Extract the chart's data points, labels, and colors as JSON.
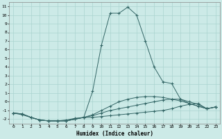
{
  "background_color": "#cceae7",
  "grid_color": "#aad4d0",
  "line_color": "#336666",
  "xlabel": "Humidex (Indice chaleur)",
  "xlim": [
    -0.5,
    23.5
  ],
  "ylim": [
    -2.5,
    11.5
  ],
  "xticks": [
    0,
    1,
    2,
    3,
    4,
    5,
    6,
    7,
    8,
    9,
    10,
    11,
    12,
    13,
    14,
    15,
    16,
    17,
    18,
    19,
    20,
    21,
    22,
    23
  ],
  "yticks": [
    -2,
    -1,
    0,
    1,
    2,
    3,
    4,
    5,
    6,
    7,
    8,
    9,
    10,
    11
  ],
  "series": [
    {
      "x": [
        0,
        1,
        2,
        3,
        4,
        5,
        6,
        7,
        8,
        9,
        10,
        11,
        12,
        13,
        14,
        15,
        16,
        17,
        18,
        19,
        20,
        21,
        22,
        23
      ],
      "y": [
        -1.3,
        -1.4,
        -1.8,
        -2.1,
        -2.2,
        -2.2,
        -2.2,
        -2.0,
        -1.8,
        -1.8,
        -1.7,
        -1.6,
        -1.5,
        -1.4,
        -1.3,
        -1.2,
        -1.1,
        -1.0,
        -0.8,
        -0.5,
        -0.3,
        -0.2,
        -0.8,
        -0.6
      ]
    },
    {
      "x": [
        0,
        1,
        2,
        3,
        4,
        5,
        6,
        7,
        8,
        9,
        10,
        11,
        12,
        13,
        14,
        15,
        16,
        17,
        18,
        19,
        20,
        21,
        22,
        23
      ],
      "y": [
        -1.3,
        -1.4,
        -1.8,
        -2.1,
        -2.2,
        -2.2,
        -2.2,
        -2.0,
        -1.8,
        -1.6,
        -1.3,
        -1.0,
        -0.8,
        -0.6,
        -0.4,
        -0.2,
        0.0,
        0.2,
        0.3,
        0.3,
        0.0,
        -0.3,
        -0.8,
        -0.6
      ]
    },
    {
      "x": [
        0,
        1,
        2,
        3,
        4,
        5,
        6,
        7,
        8,
        9,
        10,
        11,
        12,
        13,
        14,
        15,
        16,
        17,
        18,
        19,
        20,
        21,
        22,
        23
      ],
      "y": [
        -1.3,
        -1.4,
        -1.8,
        -2.1,
        -2.2,
        -2.2,
        -2.2,
        -2.0,
        -1.8,
        -1.5,
        -1.0,
        -0.5,
        0.0,
        0.3,
        0.5,
        0.6,
        0.6,
        0.5,
        0.3,
        0.1,
        -0.2,
        -0.5,
        -0.8,
        -0.6
      ]
    },
    {
      "x": [
        0,
        1,
        2,
        3,
        4,
        5,
        6,
        7,
        8,
        9,
        10,
        11,
        12,
        13,
        14,
        15,
        16,
        17,
        18,
        19,
        20,
        21,
        22,
        23
      ],
      "y": [
        -1.3,
        -1.5,
        -1.8,
        -2.1,
        -2.2,
        -2.2,
        -2.1,
        -1.9,
        -1.8,
        1.2,
        6.5,
        10.2,
        10.2,
        10.9,
        10.0,
        7.0,
        4.0,
        2.3,
        2.1,
        0.3,
        -0.2,
        -0.5,
        -0.8,
        -0.6
      ]
    }
  ]
}
